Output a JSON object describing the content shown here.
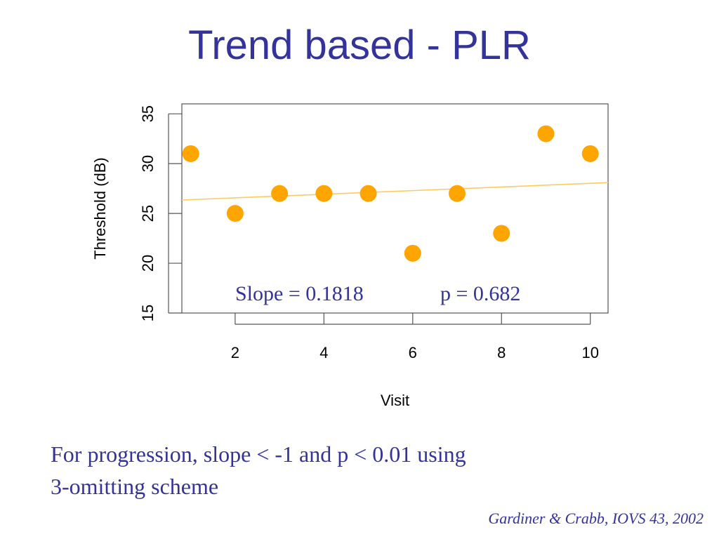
{
  "title": "Trend based - PLR",
  "colors": {
    "accent": "#33339a",
    "point": "#ffa500",
    "trend": "#ffc966"
  },
  "chart_data": {
    "type": "scatter",
    "xlabel": "Visit",
    "ylabel": "Threshold (dB)",
    "x": [
      1,
      2,
      3,
      4,
      5,
      6,
      7,
      8,
      9,
      10
    ],
    "y": [
      31,
      25,
      27,
      27,
      27,
      21,
      27,
      23,
      33,
      31
    ],
    "xlim": [
      0.8,
      10.4
    ],
    "ylim": [
      15,
      36
    ],
    "x_ticks": [
      2,
      4,
      6,
      8,
      10
    ],
    "y_ticks": [
      15,
      20,
      25,
      30,
      35
    ],
    "trend_line": {
      "slope": 0.1818,
      "intercept": 26.2
    },
    "annotation": {
      "slope_text": "Slope = 0.1818",
      "p_text": "p = 0.682"
    },
    "grid": false,
    "legend": "none"
  },
  "body": {
    "line1": "For progression, slope < -1 and p < 0.01 using",
    "line2": "3-omitting scheme"
  },
  "citation": "Gardiner & Crabb, IOVS 43, 2002"
}
